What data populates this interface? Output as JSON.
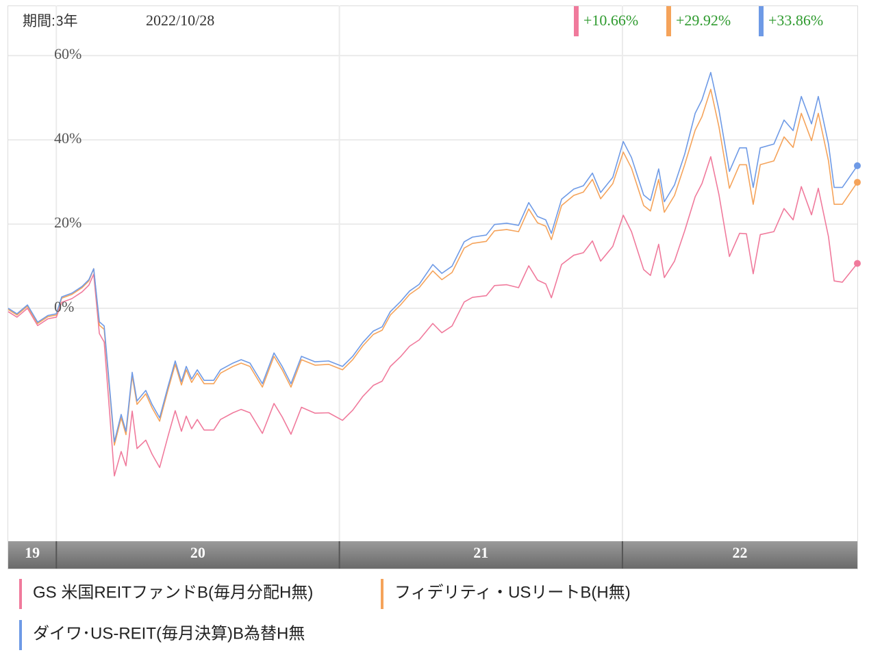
{
  "chart_data": {
    "type": "line",
    "period_label": "期間:3年",
    "date": "2022/10/28",
    "xlim": [
      2019.83,
      2022.83
    ],
    "xticks": [
      2020,
      2021,
      2022
    ],
    "year_labels": [
      "19",
      "20",
      "21",
      "22"
    ],
    "ylim": [
      -55.3,
      71.9
    ],
    "yticks": [
      {
        "value": 0,
        "label": "0%"
      },
      {
        "value": 20,
        "label": "20%"
      },
      {
        "value": 40,
        "label": "40%"
      },
      {
        "value": 60,
        "label": "60%"
      }
    ],
    "grid": true,
    "x": [
      2019.83,
      2019.861,
      2019.898,
      2019.934,
      2019.97,
      2020.0,
      2020.019,
      2020.055,
      2020.091,
      2020.115,
      2020.132,
      2020.152,
      2020.169,
      2020.188,
      2020.205,
      2020.229,
      2020.246,
      2020.268,
      2020.285,
      2020.316,
      2020.338,
      2020.365,
      2020.394,
      2020.42,
      2020.442,
      2020.459,
      2020.478,
      2020.498,
      2020.522,
      2020.556,
      2020.58,
      2020.624,
      2020.653,
      2020.684,
      2020.728,
      2020.769,
      2020.798,
      2020.829,
      2020.866,
      2020.914,
      2020.962,
      2021.011,
      2021.047,
      2021.083,
      2021.12,
      2021.151,
      2021.18,
      2021.216,
      2021.248,
      2021.282,
      2021.33,
      2021.362,
      2021.398,
      2021.441,
      2021.47,
      2021.519,
      2021.548,
      2021.591,
      2021.633,
      2021.669,
      2021.7,
      2021.729,
      2021.749,
      2021.785,
      2021.828,
      2021.862,
      2021.894,
      2021.923,
      2021.966,
      2022.003,
      2022.032,
      2022.075,
      2022.099,
      2022.128,
      2022.148,
      2022.184,
      2022.22,
      2022.257,
      2022.281,
      2022.312,
      2022.341,
      2022.378,
      2022.414,
      2022.438,
      2022.462,
      2022.487,
      2022.535,
      2022.571,
      2022.603,
      2022.632,
      2022.668,
      2022.692,
      2022.728,
      2022.748,
      2022.777,
      2022.83
    ],
    "series": [
      {
        "name": "GS 米国REITファンドB(毎月分配H無)",
        "color": "#f07a9c",
        "end_label": "+10.66%",
        "values": [
          -0.8,
          -2.1,
          0.0,
          -4.1,
          -2.5,
          -2.1,
          1.4,
          2.3,
          3.9,
          5.5,
          8.1,
          -6.0,
          -8.0,
          -24.5,
          -39.8,
          -34.0,
          -37.4,
          -24.4,
          -33.3,
          -31.3,
          -34.6,
          -37.8,
          -30.5,
          -24.3,
          -29.2,
          -25.6,
          -28.6,
          -26.4,
          -28.9,
          -28.9,
          -26.4,
          -24.8,
          -24.0,
          -24.8,
          -29.7,
          -22.6,
          -25.8,
          -29.9,
          -23.5,
          -24.9,
          -24.8,
          -26.6,
          -24.2,
          -20.9,
          -18.3,
          -17.3,
          -13.8,
          -11.5,
          -9.0,
          -7.5,
          -3.6,
          -5.8,
          -4.2,
          1.5,
          2.6,
          3.0,
          5.4,
          5.6,
          4.9,
          10.1,
          6.7,
          5.8,
          2.5,
          10.4,
          12.6,
          13.2,
          16.0,
          11.2,
          14.7,
          22.1,
          18.2,
          9.2,
          7.8,
          15.2,
          7.3,
          11.2,
          18.4,
          26.5,
          29.6,
          36.0,
          27.0,
          12.3,
          17.8,
          17.7,
          8.2,
          17.5,
          18.2,
          23.7,
          21.0,
          28.9,
          22.2,
          28.5,
          17.0,
          6.5,
          6.2,
          10.66
        ]
      },
      {
        "name": "フィデリティ・USリートB(H無)",
        "color": "#f5a35a",
        "end_label": "+29.92%",
        "values": [
          -0.3,
          -1.6,
          0.5,
          -3.6,
          -2.0,
          -1.6,
          2.4,
          3.3,
          4.9,
          6.5,
          9.4,
          -4.0,
          -5.0,
          -19.5,
          -32.5,
          -26.0,
          -30.0,
          -16.0,
          -22.8,
          -20.3,
          -23.6,
          -26.8,
          -19.5,
          -13.3,
          -18.2,
          -14.6,
          -17.6,
          -15.4,
          -17.9,
          -17.9,
          -15.4,
          -13.8,
          -13.0,
          -13.8,
          -18.7,
          -11.4,
          -14.6,
          -18.7,
          -12.2,
          -13.5,
          -13.3,
          -14.6,
          -12.2,
          -8.9,
          -6.2,
          -5.2,
          -1.6,
          0.8,
          3.3,
          4.9,
          8.9,
          6.8,
          8.5,
          14.3,
          15.4,
          15.9,
          18.4,
          18.7,
          18.2,
          23.6,
          20.3,
          19.5,
          16.3,
          24.4,
          26.8,
          27.6,
          30.6,
          26.0,
          29.6,
          37.1,
          33.3,
          24.4,
          23.1,
          30.6,
          22.8,
          26.8,
          34.1,
          42.3,
          45.5,
          52.0,
          43.1,
          28.5,
          34.1,
          34.1,
          24.7,
          34.1,
          35.0,
          40.7,
          38.2,
          46.3,
          39.8,
          46.3,
          35.0,
          24.7,
          24.7,
          29.92
        ]
      },
      {
        "name": "ダイワ･US-REIT(毎月決算)B為替H無",
        "color": "#6e9ae6",
        "end_label": "+33.86%",
        "values": [
          0.0,
          -1.3,
          0.8,
          -3.3,
          -1.7,
          -1.3,
          2.7,
          3.6,
          5.2,
          6.8,
          9.4,
          -3.2,
          -4.2,
          -18.7,
          -31.7,
          -25.2,
          -29.2,
          -15.2,
          -22.0,
          -19.5,
          -22.8,
          -26.0,
          -18.7,
          -12.5,
          -17.4,
          -13.8,
          -16.8,
          -14.6,
          -17.1,
          -17.1,
          -14.6,
          -13.0,
          -12.2,
          -13.0,
          -17.9,
          -10.6,
          -13.8,
          -17.9,
          -11.4,
          -12.7,
          -12.5,
          -13.8,
          -11.4,
          -8.1,
          -5.4,
          -4.4,
          -0.8,
          1.6,
          4.1,
          5.7,
          10.4,
          8.3,
          10.0,
          15.8,
          16.9,
          17.4,
          19.9,
          20.2,
          19.7,
          25.1,
          21.8,
          21.0,
          17.8,
          25.9,
          28.3,
          29.1,
          32.1,
          27.5,
          31.1,
          39.6,
          35.8,
          26.9,
          25.6,
          33.1,
          25.3,
          29.3,
          36.6,
          46.3,
          49.5,
          56.0,
          47.1,
          32.5,
          38.1,
          38.1,
          28.7,
          38.1,
          39.0,
          44.7,
          42.2,
          50.3,
          43.8,
          50.3,
          39.0,
          28.7,
          28.7,
          33.86
        ]
      }
    ]
  }
}
